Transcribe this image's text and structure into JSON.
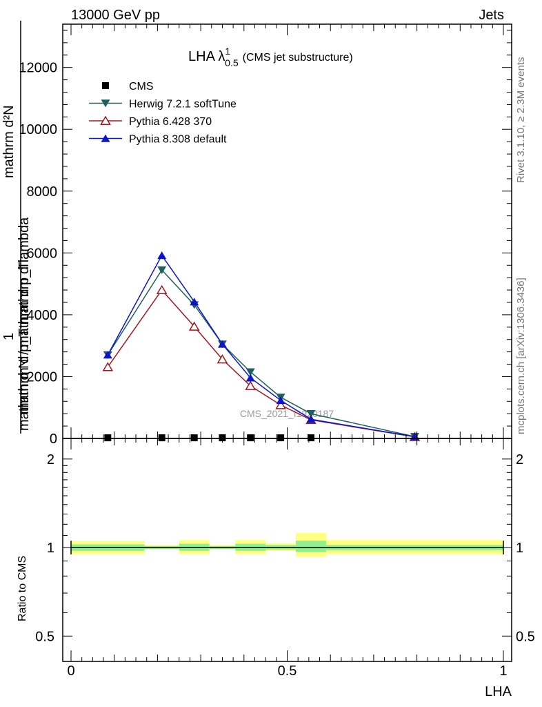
{
  "header": {
    "left": "13000 GeV pp",
    "right": "Jets"
  },
  "side_labels": {
    "top": "Rivet 3.1.10, ≥ 2.3M events",
    "bottom": "mcplots.cern.ch [arXiv:1306.3436]"
  },
  "watermark": "CMS_2021_I1920187",
  "chart_data": [
    {
      "type": "line",
      "title": {
        "main": "LHA λ",
        "sup": "1",
        "sub": "0.5",
        "note": "(CMS jet substructure)"
      },
      "ylabel": {
        "numerator": "mathrm d²N",
        "denominator": "mathrm d p_T mathrm d lambda",
        "prefix_num": "1",
        "prefix_den": "mathrm d N / mathrm d p_T"
      },
      "xlim": [
        0,
        1
      ],
      "ylim": [
        0,
        13400
      ],
      "yticks": [
        {
          "v": 0,
          "label": "0"
        },
        {
          "v": 2000,
          "label": "2000"
        },
        {
          "v": 4000,
          "label": "4000"
        },
        {
          "v": 6000,
          "label": "6000"
        },
        {
          "v": 8000,
          "label": "8000"
        },
        {
          "v": 10000,
          "label": "10000"
        },
        {
          "v": 12000,
          "label": "12000"
        }
      ],
      "series": [
        {
          "name": "CMS",
          "color": "#000000",
          "marker": "square",
          "x": [
            0.085,
            0.21,
            0.285,
            0.35,
            0.415,
            0.485,
            0.555
          ],
          "y": [
            20,
            20,
            20,
            20,
            20,
            20,
            20
          ]
        },
        {
          "name": "Herwig 7.2.1 softTune",
          "color": "#1f5f5f",
          "marker": "triangle-down",
          "x": [
            0.085,
            0.21,
            0.285,
            0.35,
            0.415,
            0.485,
            0.555,
            0.795
          ],
          "y": [
            2700,
            5450,
            4320,
            3050,
            2150,
            1330,
            800,
            60
          ]
        },
        {
          "name": "Pythia 6.428 370",
          "color": "#a0151e",
          "marker": "triangle-up-open",
          "x": [
            0.085,
            0.21,
            0.285,
            0.35,
            0.415,
            0.485,
            0.555,
            0.795
          ],
          "y": [
            2310,
            4800,
            3620,
            2560,
            1700,
            1080,
            600,
            50
          ]
        },
        {
          "name": "Pythia 8.308 default",
          "color": "#0a16c8",
          "marker": "triangle-up",
          "x": [
            0.085,
            0.21,
            0.285,
            0.35,
            0.415,
            0.485,
            0.555,
            0.795
          ],
          "y": [
            2700,
            5920,
            4420,
            3050,
            1960,
            1230,
            620,
            55
          ]
        }
      ]
    },
    {
      "type": "line",
      "ylabel": "Ratio to CMS",
      "xlabel": "LHA",
      "xlim": [
        0,
        1
      ],
      "ylim": [
        0.41,
        2.35
      ],
      "scale": "log",
      "xticks": [
        {
          "v": 0,
          "label": "0"
        },
        {
          "v": 0.5,
          "label": "0.5"
        },
        {
          "v": 1,
          "label": "1"
        }
      ],
      "yticks": [
        {
          "v": 0.5,
          "label": "0.5"
        },
        {
          "v": 1,
          "label": "1"
        },
        {
          "v": 2,
          "label": "2"
        }
      ],
      "bands": [
        {
          "x0": 0.0,
          "x1": 0.17,
          "inner": [
            0.975,
            1.025
          ],
          "outer": [
            0.95,
            1.055
          ]
        },
        {
          "x0": 0.17,
          "x1": 0.25,
          "inner": [
            0.99,
            1.012
          ],
          "outer": [
            0.985,
            1.018
          ]
        },
        {
          "x0": 0.25,
          "x1": 0.32,
          "inner": [
            0.975,
            1.03
          ],
          "outer": [
            0.95,
            1.06
          ]
        },
        {
          "x0": 0.32,
          "x1": 0.38,
          "inner": [
            0.99,
            1.012
          ],
          "outer": [
            0.985,
            1.018
          ]
        },
        {
          "x0": 0.38,
          "x1": 0.45,
          "inner": [
            0.975,
            1.03
          ],
          "outer": [
            0.95,
            1.06
          ]
        },
        {
          "x0": 0.45,
          "x1": 0.52,
          "inner": [
            0.985,
            1.02
          ],
          "outer": [
            0.975,
            1.035
          ]
        },
        {
          "x0": 0.52,
          "x1": 0.59,
          "inner": [
            0.965,
            1.055
          ],
          "outer": [
            0.93,
            1.12
          ]
        },
        {
          "x0": 0.59,
          "x1": 1.0,
          "inner": [
            0.98,
            1.02
          ],
          "outer": [
            0.95,
            1.06
          ]
        }
      ],
      "band_colors": {
        "inner": "#8ef08e",
        "outer": "#ffff80"
      }
    }
  ]
}
